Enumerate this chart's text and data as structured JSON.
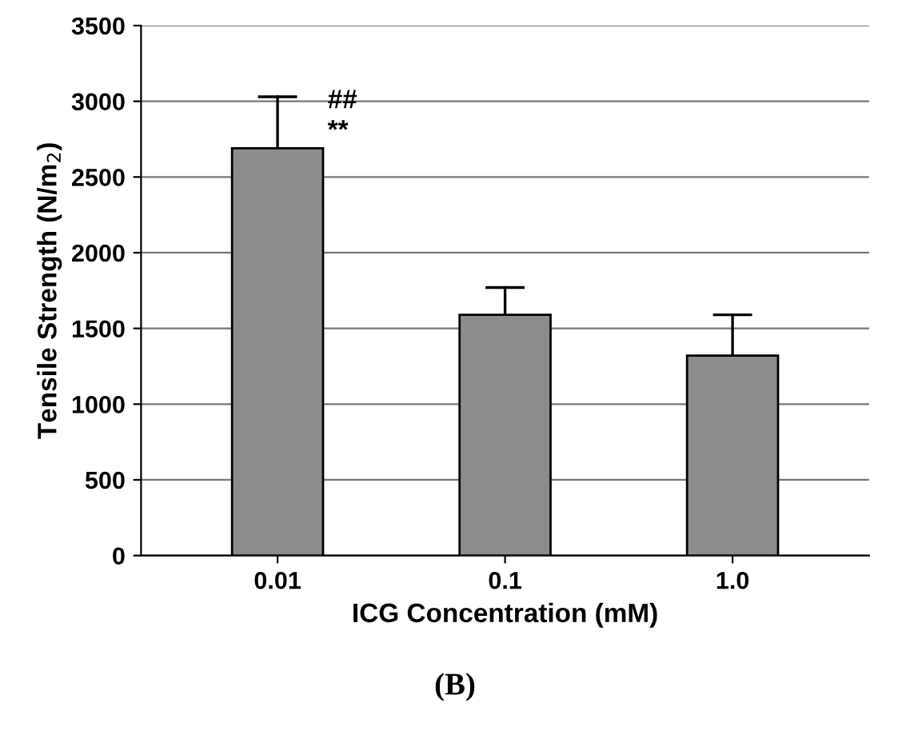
{
  "chart_data": {
    "type": "bar",
    "xlabel": "ICG Concentration (mM)",
    "ylabel": "Tensile Strength (N/m$_{2}$)",
    "categories": [
      "0.01",
      "0.1",
      "1.0"
    ],
    "values": [
      2690,
      1590,
      1320
    ],
    "errors": [
      [
        2690,
        3030
      ],
      [
        1590,
        1770
      ],
      [
        1320,
        1590
      ]
    ],
    "color": "#8c8c8c",
    "ylim": [
      0,
      3500
    ],
    "yticks": [
      0,
      500,
      1000,
      1500,
      2000,
      2500,
      3000,
      3500
    ],
    "grid": "y",
    "annotations": [
      {
        "text": "##",
        "x": "0.01",
        "y": 3000
      },
      {
        "text": "**",
        "x": "0.01",
        "y": 2800
      },
      "(B)"
    ]
  }
}
